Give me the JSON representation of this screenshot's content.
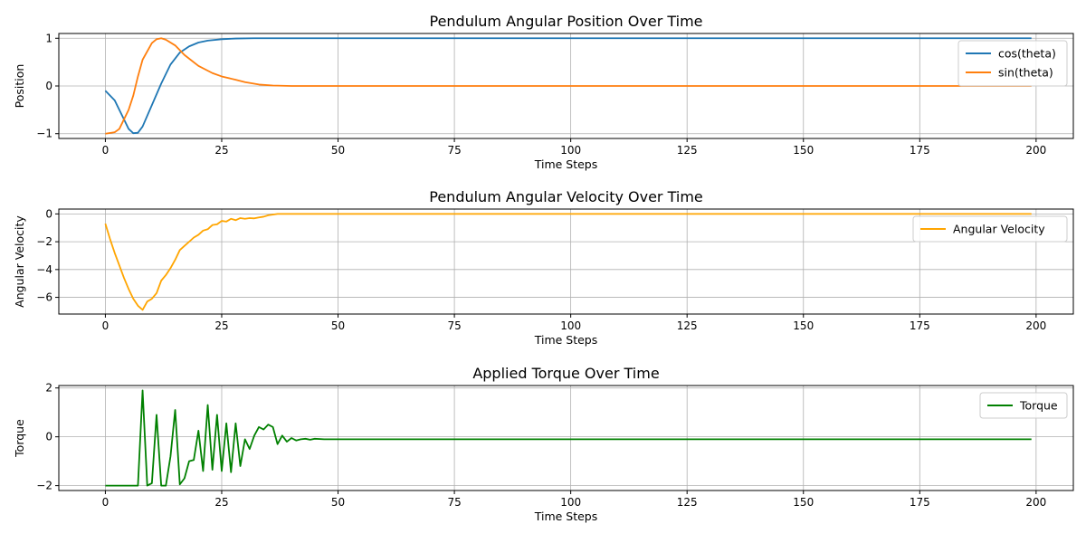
{
  "chart_data": [
    {
      "type": "line",
      "title": "Pendulum Angular Position Over Time",
      "xlabel": "Time Steps",
      "ylabel": "Position",
      "xlim": [
        -10,
        208
      ],
      "ylim": [
        -1.1,
        1.1
      ],
      "xticks": [
        0,
        25,
        50,
        75,
        100,
        125,
        150,
        175,
        200
      ],
      "yticks": [
        -1,
        0,
        1
      ],
      "ytick_labels": [
        "−1",
        "0",
        "1"
      ],
      "grid": true,
      "legend_position": "top-right",
      "series": [
        {
          "name": "cos(theta)",
          "color": "#1f77b4",
          "points": [
            [
              0,
              -0.1
            ],
            [
              2,
              -0.3
            ],
            [
              4,
              -0.7
            ],
            [
              5,
              -0.9
            ],
            [
              6,
              -0.99
            ],
            [
              7,
              -0.98
            ],
            [
              8,
              -0.85
            ],
            [
              10,
              -0.4
            ],
            [
              12,
              0.05
            ],
            [
              14,
              0.45
            ],
            [
              16,
              0.7
            ],
            [
              18,
              0.83
            ],
            [
              20,
              0.91
            ],
            [
              22,
              0.95
            ],
            [
              25,
              0.98
            ],
            [
              28,
              0.995
            ],
            [
              32,
              1.0
            ],
            [
              199,
              1.0
            ]
          ]
        },
        {
          "name": "sin(theta)",
          "color": "#ff7f0e",
          "points": [
            [
              0,
              -1.0
            ],
            [
              2,
              -0.97
            ],
            [
              3,
              -0.9
            ],
            [
              5,
              -0.5
            ],
            [
              6,
              -0.2
            ],
            [
              7,
              0.2
            ],
            [
              8,
              0.55
            ],
            [
              10,
              0.9
            ],
            [
              11,
              0.98
            ],
            [
              12,
              1.0
            ],
            [
              13,
              0.97
            ],
            [
              15,
              0.85
            ],
            [
              17,
              0.65
            ],
            [
              20,
              0.42
            ],
            [
              23,
              0.27
            ],
            [
              25,
              0.2
            ],
            [
              28,
              0.13
            ],
            [
              30,
              0.08
            ],
            [
              33,
              0.03
            ],
            [
              36,
              0.01
            ],
            [
              40,
              0.0
            ],
            [
              199,
              0.0
            ]
          ]
        }
      ]
    },
    {
      "type": "line",
      "title": "Pendulum Angular Velocity Over Time",
      "xlabel": "Time Steps",
      "ylabel": "Angular Velocity",
      "xlim": [
        -10,
        208
      ],
      "ylim": [
        -7.2,
        0.35
      ],
      "xticks": [
        0,
        25,
        50,
        75,
        100,
        125,
        150,
        175,
        200
      ],
      "yticks": [
        -6,
        -4,
        -2,
        0
      ],
      "ytick_labels": [
        "−6",
        "−4",
        "−2",
        "0"
      ],
      "grid": true,
      "legend_position": "top-right",
      "series": [
        {
          "name": "Angular Velocity",
          "color": "#ffa500",
          "points": [
            [
              0,
              -0.7
            ],
            [
              1,
              -1.8
            ],
            [
              2,
              -2.8
            ],
            [
              3,
              -3.7
            ],
            [
              4,
              -4.6
            ],
            [
              5,
              -5.4
            ],
            [
              6,
              -6.1
            ],
            [
              7,
              -6.6
            ],
            [
              8,
              -6.9
            ],
            [
              9,
              -6.3
            ],
            [
              10,
              -6.1
            ],
            [
              11,
              -5.7
            ],
            [
              12,
              -4.8
            ],
            [
              13,
              -4.4
            ],
            [
              14,
              -3.9
            ],
            [
              15,
              -3.3
            ],
            [
              16,
              -2.6
            ],
            [
              17,
              -2.3
            ],
            [
              18,
              -2.0
            ],
            [
              19,
              -1.7
            ],
            [
              20,
              -1.5
            ],
            [
              21,
              -1.2
            ],
            [
              22,
              -1.1
            ],
            [
              23,
              -0.8
            ],
            [
              24,
              -0.75
            ],
            [
              25,
              -0.5
            ],
            [
              26,
              -0.55
            ],
            [
              27,
              -0.35
            ],
            [
              28,
              -0.45
            ],
            [
              29,
              -0.3
            ],
            [
              30,
              -0.35
            ],
            [
              31,
              -0.3
            ],
            [
              32,
              -0.32
            ],
            [
              33,
              -0.25
            ],
            [
              34,
              -0.2
            ],
            [
              35,
              -0.1
            ],
            [
              36,
              -0.05
            ],
            [
              37,
              0.0
            ],
            [
              199,
              0.0
            ]
          ]
        }
      ]
    },
    {
      "type": "line",
      "title": "Applied Torque Over Time",
      "xlabel": "Time Steps",
      "ylabel": "Torque",
      "xlim": [
        -10,
        208
      ],
      "ylim": [
        -2.2,
        2.1
      ],
      "xticks": [
        0,
        25,
        50,
        75,
        100,
        125,
        150,
        175,
        200
      ],
      "yticks": [
        -2,
        0,
        2
      ],
      "ytick_labels": [
        "−2",
        "0",
        "2"
      ],
      "grid": true,
      "legend_position": "top-right",
      "series": [
        {
          "name": "Torque",
          "color": "#008000",
          "points": [
            [
              0,
              -2.0
            ],
            [
              7,
              -2.0
            ],
            [
              8,
              1.9
            ],
            [
              9,
              -2.0
            ],
            [
              10,
              -1.9
            ],
            [
              11,
              0.9
            ],
            [
              12,
              -2.0
            ],
            [
              13,
              -2.0
            ],
            [
              14,
              -0.8
            ],
            [
              15,
              1.1
            ],
            [
              16,
              -1.95
            ],
            [
              17,
              -1.7
            ],
            [
              18,
              -1.0
            ],
            [
              19,
              -0.95
            ],
            [
              20,
              0.25
            ],
            [
              21,
              -1.4
            ],
            [
              22,
              1.3
            ],
            [
              23,
              -1.35
            ],
            [
              24,
              0.9
            ],
            [
              25,
              -1.4
            ],
            [
              26,
              0.55
            ],
            [
              27,
              -1.45
            ],
            [
              28,
              0.55
            ],
            [
              29,
              -1.2
            ],
            [
              30,
              -0.1
            ],
            [
              31,
              -0.5
            ],
            [
              32,
              0.05
            ],
            [
              33,
              0.4
            ],
            [
              34,
              0.3
            ],
            [
              35,
              0.5
            ],
            [
              36,
              0.4
            ],
            [
              37,
              -0.3
            ],
            [
              38,
              0.05
            ],
            [
              39,
              -0.2
            ],
            [
              40,
              -0.05
            ],
            [
              41,
              -0.15
            ],
            [
              42,
              -0.1
            ],
            [
              43,
              -0.08
            ],
            [
              44,
              -0.12
            ],
            [
              45,
              -0.08
            ],
            [
              47,
              -0.1
            ],
            [
              199,
              -0.1
            ]
          ]
        }
      ]
    }
  ]
}
